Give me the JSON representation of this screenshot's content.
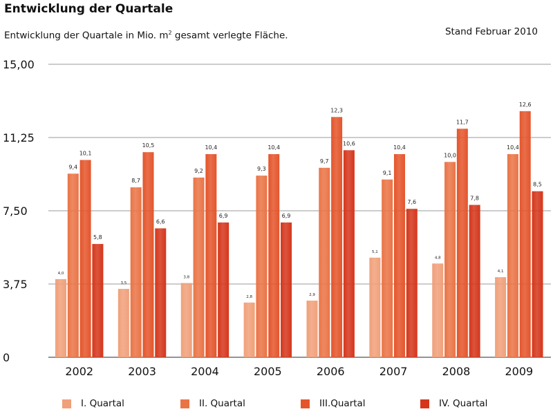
{
  "title": "Entwicklung der Quartale",
  "subtitle_main": "Entwicklung der Quartale in Mio. m",
  "subtitle_sup": "2",
  "subtitle_rest": " gesamt verlegte Fläche.",
  "status": "Stand Februar 2010",
  "colors": {
    "q1": "#f0a07a",
    "q2": "#ea7446",
    "q3": "#e4552b",
    "q4": "#d5361b",
    "grid": "#999999",
    "axis": "#555555"
  },
  "chart_data": {
    "type": "bar",
    "title": "Entwicklung der Quartale",
    "subtitle": "Entwicklung der Quartale in Mio. m² gesamt verlegte Fläche.",
    "categories": [
      "2002",
      "2003",
      "2004",
      "2005",
      "2006",
      "2007",
      "2008",
      "2009"
    ],
    "ylim": [
      0,
      15
    ],
    "yticks": [
      0,
      3.75,
      7.5,
      11.25,
      15
    ],
    "ytick_labels": [
      "0",
      "3,75",
      "7,50",
      "11,25",
      "15,00"
    ],
    "grid": true,
    "legend_position": "bottom",
    "series": [
      {
        "name": "I. Quartal",
        "values": [
          4.0,
          3.5,
          3.8,
          2.8,
          2.9,
          5.1,
          4.8,
          4.1
        ],
        "labels": [
          "4,0",
          "3,5",
          "3,8",
          "2,8",
          "2,9",
          "5,1",
          "4,8",
          "4,1"
        ]
      },
      {
        "name": "II. Quartal",
        "values": [
          9.4,
          8.7,
          9.2,
          9.3,
          9.7,
          9.1,
          10.0,
          10.4
        ],
        "labels": [
          "9,4",
          "8,7",
          "9,2",
          "9,3",
          "9,7",
          "9,1",
          "10,0",
          "10,4"
        ]
      },
      {
        "name": "III.Quartal",
        "values": [
          10.1,
          10.5,
          10.4,
          10.4,
          12.3,
          10.4,
          11.7,
          12.6
        ],
        "labels": [
          "10,1",
          "10,5",
          "10,4",
          "10,4",
          "12,3",
          "10,4",
          "11,7",
          "12,6"
        ]
      },
      {
        "name": "IV. Quartal",
        "values": [
          5.8,
          6.6,
          6.9,
          6.9,
          10.6,
          7.6,
          7.8,
          8.5
        ],
        "labels": [
          "5,8",
          "6,6",
          "6,9",
          "6,9",
          "10,6",
          "7,6",
          "7,8",
          "8,5"
        ]
      }
    ]
  }
}
